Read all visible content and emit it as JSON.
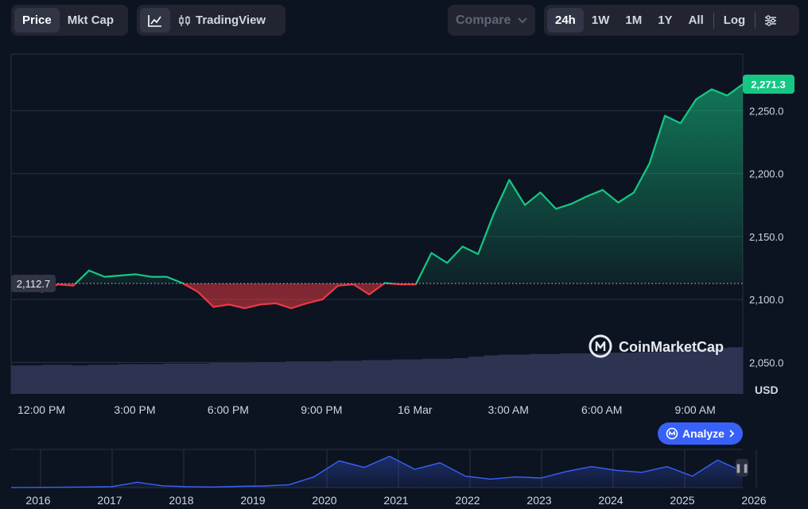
{
  "toolbar": {
    "metric_tabs": [
      {
        "label": "Price",
        "active": true
      },
      {
        "label": "Mkt Cap",
        "active": false
      }
    ],
    "chart_mode": {
      "line_icon": "line-chart-icon",
      "candle_icon": "candlestick-icon",
      "tradingview_label": "TradingView"
    },
    "compare_label": "Compare",
    "ranges": [
      {
        "label": "24h",
        "active": true
      },
      {
        "label": "1W",
        "active": false
      },
      {
        "label": "1M",
        "active": false
      },
      {
        "label": "1Y",
        "active": false
      },
      {
        "label": "All",
        "active": false
      }
    ],
    "log_label": "Log",
    "settings_icon": "sliders-icon"
  },
  "watermark": {
    "text": "CoinMarketCap",
    "icon": "coinmarketcap-logo-icon"
  },
  "analyze_label": "Analyze",
  "colors": {
    "up": "#16c784",
    "down": "#ea3943",
    "accent": "#3861fb",
    "background": "#0d1421"
  },
  "chart_data": {
    "type": "line",
    "series": [
      {
        "x": [
          "12:00",
          "12:30",
          "13:00",
          "13:30",
          "14:00",
          "14:30",
          "15:00",
          "15:30",
          "16:00",
          "16:30",
          "17:00",
          "17:30",
          "18:00",
          "18:30",
          "19:00",
          "19:30",
          "20:00",
          "20:30",
          "21:00",
          "21:30",
          "22:00",
          "22:30",
          "23:00",
          "23:30",
          "00:00",
          "00:30",
          "01:00",
          "01:30",
          "02:00",
          "02:30",
          "03:00",
          "03:30",
          "04:00",
          "04:30",
          "05:00",
          "05:30",
          "06:00",
          "06:30",
          "07:00",
          "07:30",
          "08:00",
          "08:30",
          "09:00",
          "09:30",
          "10:00",
          "10:30",
          "11:00",
          "11:30"
        ],
        "values": [
          2112,
          2110,
          2106,
          2112,
          2111,
          2123,
          2118,
          2119,
          2120,
          2118,
          2118,
          2113,
          2106,
          2094,
          2096,
          2093,
          2096,
          2097,
          2093,
          2097,
          2100,
          2111,
          2112,
          2104,
          2113,
          2112,
          2112,
          2137,
          2129,
          2142,
          2136,
          2168,
          2195,
          2175,
          2185,
          2172,
          2176,
          2182,
          2187,
          2177,
          2185,
          2208,
          2246,
          2240,
          2259,
          2267,
          2262,
          2271
        ]
      }
    ],
    "reference_value": 2112.7,
    "reference_label": "2,112.7",
    "last_value_label": "2,271.3",
    "x_tick_labels": [
      "12:00 PM",
      "3:00 PM",
      "6:00 PM",
      "9:00 PM",
      "16 Mar",
      "3:00 AM",
      "6:00 AM",
      "9:00 AM"
    ],
    "y_tick_values": [
      2050,
      2100,
      2150,
      2200,
      2250
    ],
    "y_tick_labels": [
      "2,050.0",
      "2,100.0",
      "2,150.0",
      "2,200.0",
      "2,250.0"
    ],
    "y_unit": "USD",
    "ylim": [
      2025,
      2295
    ],
    "grid": true,
    "volume": [
      42,
      42,
      43,
      43,
      42,
      43,
      43,
      44,
      44,
      44,
      45,
      45,
      45,
      46,
      46,
      46,
      47,
      47,
      48,
      48,
      48,
      49,
      49,
      50,
      50,
      51,
      51,
      52,
      52,
      53,
      55,
      57,
      58,
      58,
      59,
      59,
      60,
      60,
      60,
      61,
      61,
      62,
      62,
      66,
      67,
      67,
      68,
      69
    ],
    "overview": {
      "x_tick_labels": [
        "2016",
        "2017",
        "2018",
        "2019",
        "2020",
        "2021",
        "2022",
        "2023",
        "2024",
        "2025",
        "2026"
      ],
      "values": [
        0.2,
        0.5,
        0.8,
        1.5,
        2.4,
        14,
        4.5,
        2.2,
        1.5,
        3.2,
        4.2,
        7,
        28,
        70,
        53,
        82,
        48,
        65,
        30,
        22,
        28,
        25,
        42,
        55,
        45,
        40,
        55,
        30,
        72,
        42
      ]
    }
  }
}
